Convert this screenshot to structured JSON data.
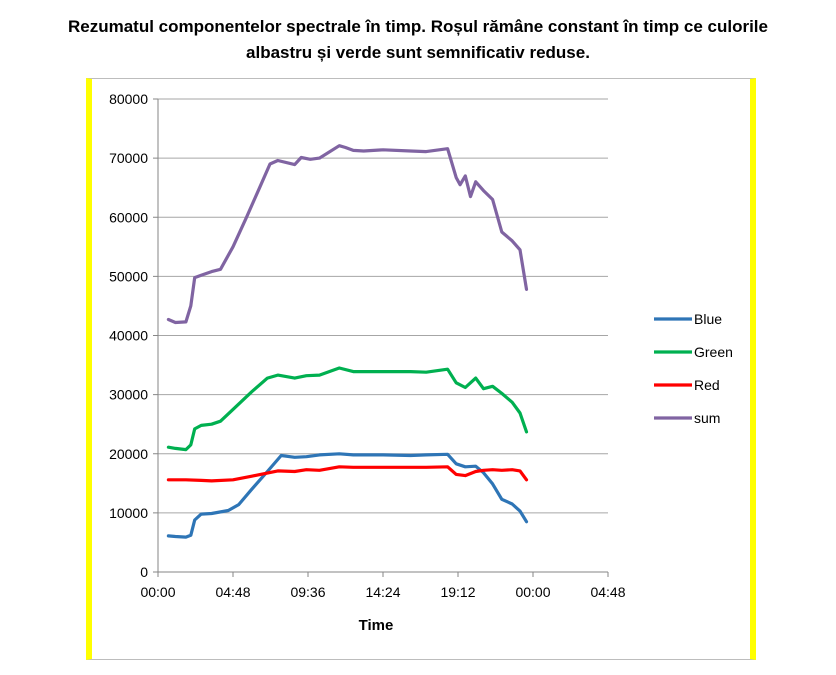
{
  "caption": {
    "line1": "Rezumatul componentelor spectrale în timp. Roșul rămâne constant în timp ce culorile",
    "line2": "albastru și verde sunt semnificativ reduse."
  },
  "colors": {
    "frame_border": "#ffff00",
    "gridline": "#a6a6a6",
    "axis": "#868686"
  },
  "chart_data": {
    "type": "line",
    "xlabel": "Time",
    "ylabel": "",
    "ylim": [
      0,
      80000
    ],
    "yticks": [
      0,
      10000,
      20000,
      30000,
      40000,
      50000,
      60000,
      70000,
      80000
    ],
    "ytick_labels": [
      "0",
      "10000",
      "20000",
      "30000",
      "40000",
      "50000",
      "60000",
      "70000",
      "80000"
    ],
    "xlim_minutes": [
      0,
      1728
    ],
    "xtick_labels": [
      "00:00",
      "04:48",
      "09:36",
      "14:24",
      "19:12",
      "00:00",
      "04:48"
    ],
    "grid": "horizontal",
    "legend_position": "right",
    "series": [
      {
        "name": "Blue",
        "color": "#2e75b6",
        "points": [
          [
            "00:40",
            6100
          ],
          [
            "01:07",
            6000
          ],
          [
            "01:47",
            5900
          ],
          [
            "02:06",
            6200
          ],
          [
            "02:21",
            8800
          ],
          [
            "02:46",
            9800
          ],
          [
            "03:26",
            9900
          ],
          [
            "04:30",
            10400
          ],
          [
            "05:10",
            11400
          ],
          [
            "06:00",
            14000
          ],
          [
            "07:00",
            17000
          ],
          [
            "07:53",
            19700
          ],
          [
            "08:45",
            19400
          ],
          [
            "09:30",
            19500
          ],
          [
            "10:20",
            19800
          ],
          [
            "11:36",
            20000
          ],
          [
            "12:30",
            19800
          ],
          [
            "14:24",
            19800
          ],
          [
            "16:10",
            19700
          ],
          [
            "17:10",
            19800
          ],
          [
            "18:32",
            19900
          ],
          [
            "19:05",
            18300
          ],
          [
            "19:40",
            17800
          ],
          [
            "20:20",
            17900
          ],
          [
            "20:50",
            16800
          ],
          [
            "21:25",
            14900
          ],
          [
            "22:00",
            12300
          ],
          [
            "22:40",
            11500
          ],
          [
            "23:10",
            10300
          ],
          [
            "23:35",
            8500
          ]
        ]
      },
      {
        "name": "Green",
        "color": "#00b050",
        "points": [
          [
            "00:40",
            21100
          ],
          [
            "01:07",
            20900
          ],
          [
            "01:47",
            20700
          ],
          [
            "02:06",
            21500
          ],
          [
            "02:21",
            24200
          ],
          [
            "02:46",
            24800
          ],
          [
            "03:26",
            25000
          ],
          [
            "04:00",
            25500
          ],
          [
            "04:48",
            27500
          ],
          [
            "06:00",
            30500
          ],
          [
            "07:00",
            32800
          ],
          [
            "07:40",
            33300
          ],
          [
            "08:45",
            32800
          ],
          [
            "09:30",
            33200
          ],
          [
            "10:20",
            33300
          ],
          [
            "11:36",
            34500
          ],
          [
            "12:30",
            33900
          ],
          [
            "14:24",
            33900
          ],
          [
            "16:10",
            33900
          ],
          [
            "17:10",
            33800
          ],
          [
            "18:32",
            34300
          ],
          [
            "19:05",
            32000
          ],
          [
            "19:40",
            31200
          ],
          [
            "20:20",
            32800
          ],
          [
            "20:50",
            31000
          ],
          [
            "21:25",
            31400
          ],
          [
            "22:00",
            30200
          ],
          [
            "22:40",
            28700
          ],
          [
            "23:10",
            26900
          ],
          [
            "23:35",
            23700
          ]
        ]
      },
      {
        "name": "Red",
        "color": "#ff0000",
        "points": [
          [
            "00:40",
            15600
          ],
          [
            "01:47",
            15600
          ],
          [
            "02:46",
            15500
          ],
          [
            "03:26",
            15400
          ],
          [
            "04:48",
            15600
          ],
          [
            "06:00",
            16200
          ],
          [
            "07:40",
            17100
          ],
          [
            "08:45",
            17000
          ],
          [
            "09:30",
            17300
          ],
          [
            "10:20",
            17200
          ],
          [
            "11:36",
            17800
          ],
          [
            "12:30",
            17700
          ],
          [
            "14:24",
            17700
          ],
          [
            "16:10",
            17700
          ],
          [
            "17:10",
            17700
          ],
          [
            "18:32",
            17800
          ],
          [
            "19:05",
            16500
          ],
          [
            "19:40",
            16300
          ],
          [
            "20:20",
            17000
          ],
          [
            "20:50",
            17200
          ],
          [
            "21:25",
            17300
          ],
          [
            "22:00",
            17200
          ],
          [
            "22:40",
            17300
          ],
          [
            "23:10",
            17100
          ],
          [
            "23:35",
            15600
          ]
        ]
      },
      {
        "name": "sum",
        "color": "#8064a2",
        "points": [
          [
            "00:40",
            42700
          ],
          [
            "01:07",
            42200
          ],
          [
            "01:47",
            42300
          ],
          [
            "02:06",
            45000
          ],
          [
            "02:21",
            49800
          ],
          [
            "02:46",
            50200
          ],
          [
            "03:26",
            50800
          ],
          [
            "04:00",
            51200
          ],
          [
            "04:48",
            55000
          ],
          [
            "05:40",
            60000
          ],
          [
            "06:30",
            65000
          ],
          [
            "07:10",
            69000
          ],
          [
            "07:40",
            69600
          ],
          [
            "08:45",
            68900
          ],
          [
            "09:10",
            70100
          ],
          [
            "09:45",
            69800
          ],
          [
            "10:20",
            70000
          ],
          [
            "11:36",
            72100
          ],
          [
            "12:00",
            71800
          ],
          [
            "12:30",
            71300
          ],
          [
            "13:10",
            71200
          ],
          [
            "14:24",
            71400
          ],
          [
            "16:10",
            71200
          ],
          [
            "17:10",
            71100
          ],
          [
            "18:32",
            71600
          ],
          [
            "19:05",
            66700
          ],
          [
            "19:20",
            65500
          ],
          [
            "19:40",
            67000
          ],
          [
            "20:00",
            63500
          ],
          [
            "20:20",
            66000
          ],
          [
            "20:50",
            64500
          ],
          [
            "21:25",
            63000
          ],
          [
            "22:00",
            57500
          ],
          [
            "22:40",
            56000
          ],
          [
            "23:10",
            54500
          ],
          [
            "23:35",
            47800
          ]
        ]
      }
    ]
  }
}
